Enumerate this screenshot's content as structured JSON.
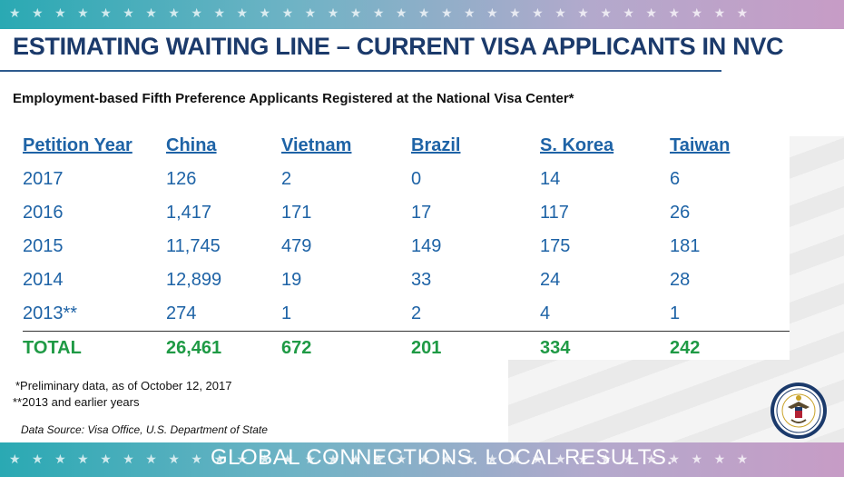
{
  "header": {
    "title": "ESTIMATING WAITING LINE – CURRENT VISA APPLICANTS IN NVC",
    "subtitle": "Employment-based Fifth Preference Applicants Registered at the National Visa Center*"
  },
  "table": {
    "columns": [
      "Petition Year",
      "China",
      "Vietnam",
      "Brazil",
      "S. Korea",
      "Taiwan"
    ],
    "rows": [
      [
        "2017",
        "126",
        "2",
        "0",
        "14",
        "6"
      ],
      [
        "2016",
        "1,417",
        "171",
        "17",
        "117",
        "26"
      ],
      [
        "2015",
        "11,745",
        "479",
        "149",
        "175",
        "181"
      ],
      [
        "2014",
        "12,899",
        "19",
        "33",
        "24",
        "28"
      ],
      [
        "2013**",
        "274",
        "1",
        "2",
        "4",
        "1"
      ]
    ],
    "total": [
      "TOTAL",
      "26,461",
      "672",
      "201",
      "334",
      "242"
    ]
  },
  "notes": {
    "preliminary": "*Preliminary data, as of October 12, 2017",
    "earlier": "**2013 and earlier years",
    "source": "Data Source: Visa Office, U.S. Department of State"
  },
  "footer": {
    "slogan": "GLOBAL CONNECTIONS. LOCAL RESULTS.",
    "seal_icon": "department-of-state-seal-icon"
  },
  "colors": {
    "title": "#1b3a6b",
    "table_text": "#1e63a6",
    "total_text": "#1f9a45",
    "band_start": "#2aa9b3",
    "band_end": "#c79cc6"
  }
}
